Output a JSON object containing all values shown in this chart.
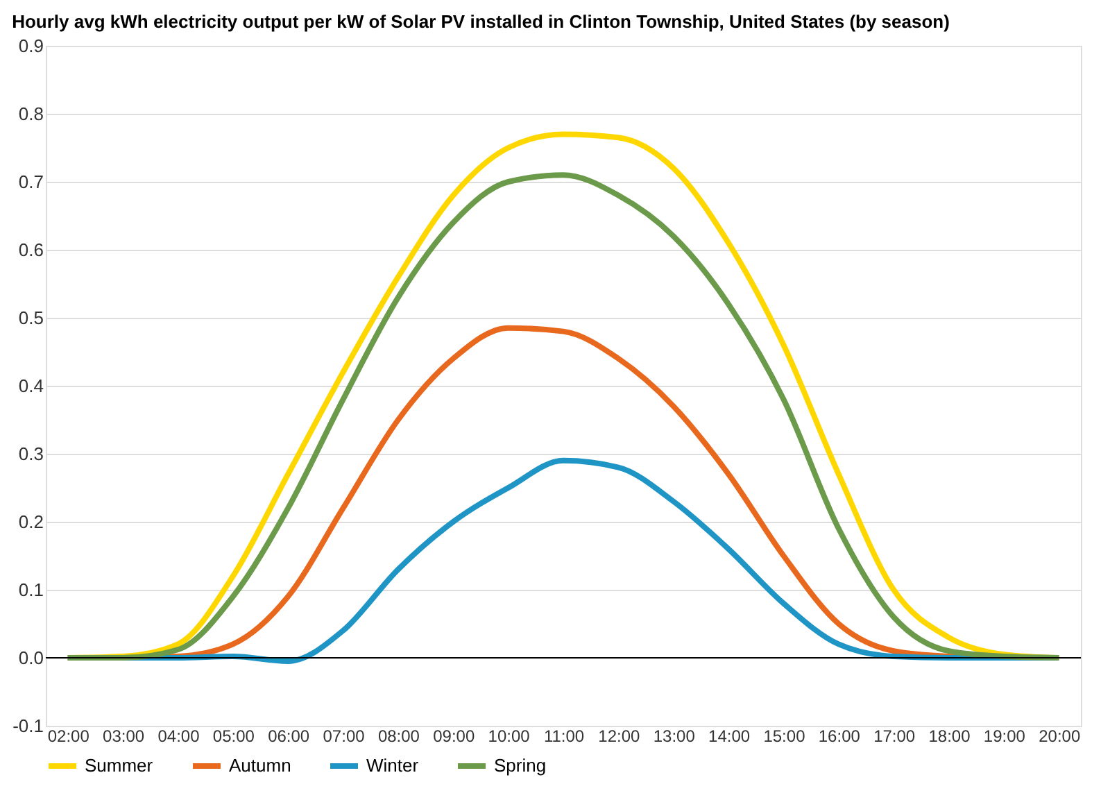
{
  "chart_data": {
    "type": "line",
    "title": "Hourly avg kWh electricity output per kW of Solar PV installed in Clinton Township, United States (by season)",
    "x": [
      2,
      3,
      4,
      5,
      6,
      7,
      8,
      9,
      10,
      11,
      12,
      13,
      14,
      15,
      16,
      17,
      18,
      19,
      20
    ],
    "series": [
      {
        "name": "Summer",
        "color": "#ffd700",
        "values": [
          0,
          0.002,
          0.02,
          0.12,
          0.27,
          0.42,
          0.56,
          0.68,
          0.75,
          0.77,
          0.765,
          0.72,
          0.61,
          0.46,
          0.27,
          0.1,
          0.03,
          0.005,
          0
        ]
      },
      {
        "name": "Autumn",
        "color": "#e8681e",
        "values": [
          0,
          0,
          0.002,
          0.02,
          0.09,
          0.22,
          0.35,
          0.44,
          0.485,
          0.48,
          0.44,
          0.37,
          0.27,
          0.15,
          0.05,
          0.01,
          0.002,
          0,
          0
        ]
      },
      {
        "name": "Winter",
        "color": "#1f95c6",
        "values": [
          0,
          0,
          0,
          0.002,
          -0.005,
          0.04,
          0.13,
          0.2,
          0.25,
          0.29,
          0.28,
          0.23,
          0.16,
          0.08,
          0.02,
          0.002,
          0,
          0,
          0
        ]
      },
      {
        "name": "Spring",
        "color": "#6a9a4a",
        "values": [
          0,
          0,
          0.012,
          0.09,
          0.22,
          0.38,
          0.53,
          0.64,
          0.7,
          0.71,
          0.68,
          0.62,
          0.52,
          0.38,
          0.19,
          0.06,
          0.01,
          0.002,
          0
        ]
      }
    ],
    "xlim": [
      1.6,
      20.4
    ],
    "xticks": [
      {
        "value": 2,
        "label": "02:00"
      },
      {
        "value": 3,
        "label": "03:00"
      },
      {
        "value": 4,
        "label": "04:00"
      },
      {
        "value": 5,
        "label": "05:00"
      },
      {
        "value": 6,
        "label": "06:00"
      },
      {
        "value": 7,
        "label": "07:00"
      },
      {
        "value": 8,
        "label": "08:00"
      },
      {
        "value": 9,
        "label": "09:00"
      },
      {
        "value": 10,
        "label": "10:00"
      },
      {
        "value": 11,
        "label": "11:00"
      },
      {
        "value": 12,
        "label": "12:00"
      },
      {
        "value": 13,
        "label": "13:00"
      },
      {
        "value": 14,
        "label": "14:00"
      },
      {
        "value": 15,
        "label": "15:00"
      },
      {
        "value": 16,
        "label": "16:00"
      },
      {
        "value": 17,
        "label": "17:00"
      },
      {
        "value": 18,
        "label": "18:00"
      },
      {
        "value": 19,
        "label": "19:00"
      },
      {
        "value": 20,
        "label": "20:00"
      }
    ],
    "ylim": [
      -0.1,
      0.9
    ],
    "yticks": [
      -0.1,
      {
        "value": 0,
        "label": "0.0"
      },
      0.1,
      0.2,
      0.3,
      0.4,
      0.5,
      0.6,
      0.7,
      0.8,
      0.9
    ],
    "grid": "y",
    "legend": "bottom",
    "marker": "none",
    "line_style": "solid"
  }
}
